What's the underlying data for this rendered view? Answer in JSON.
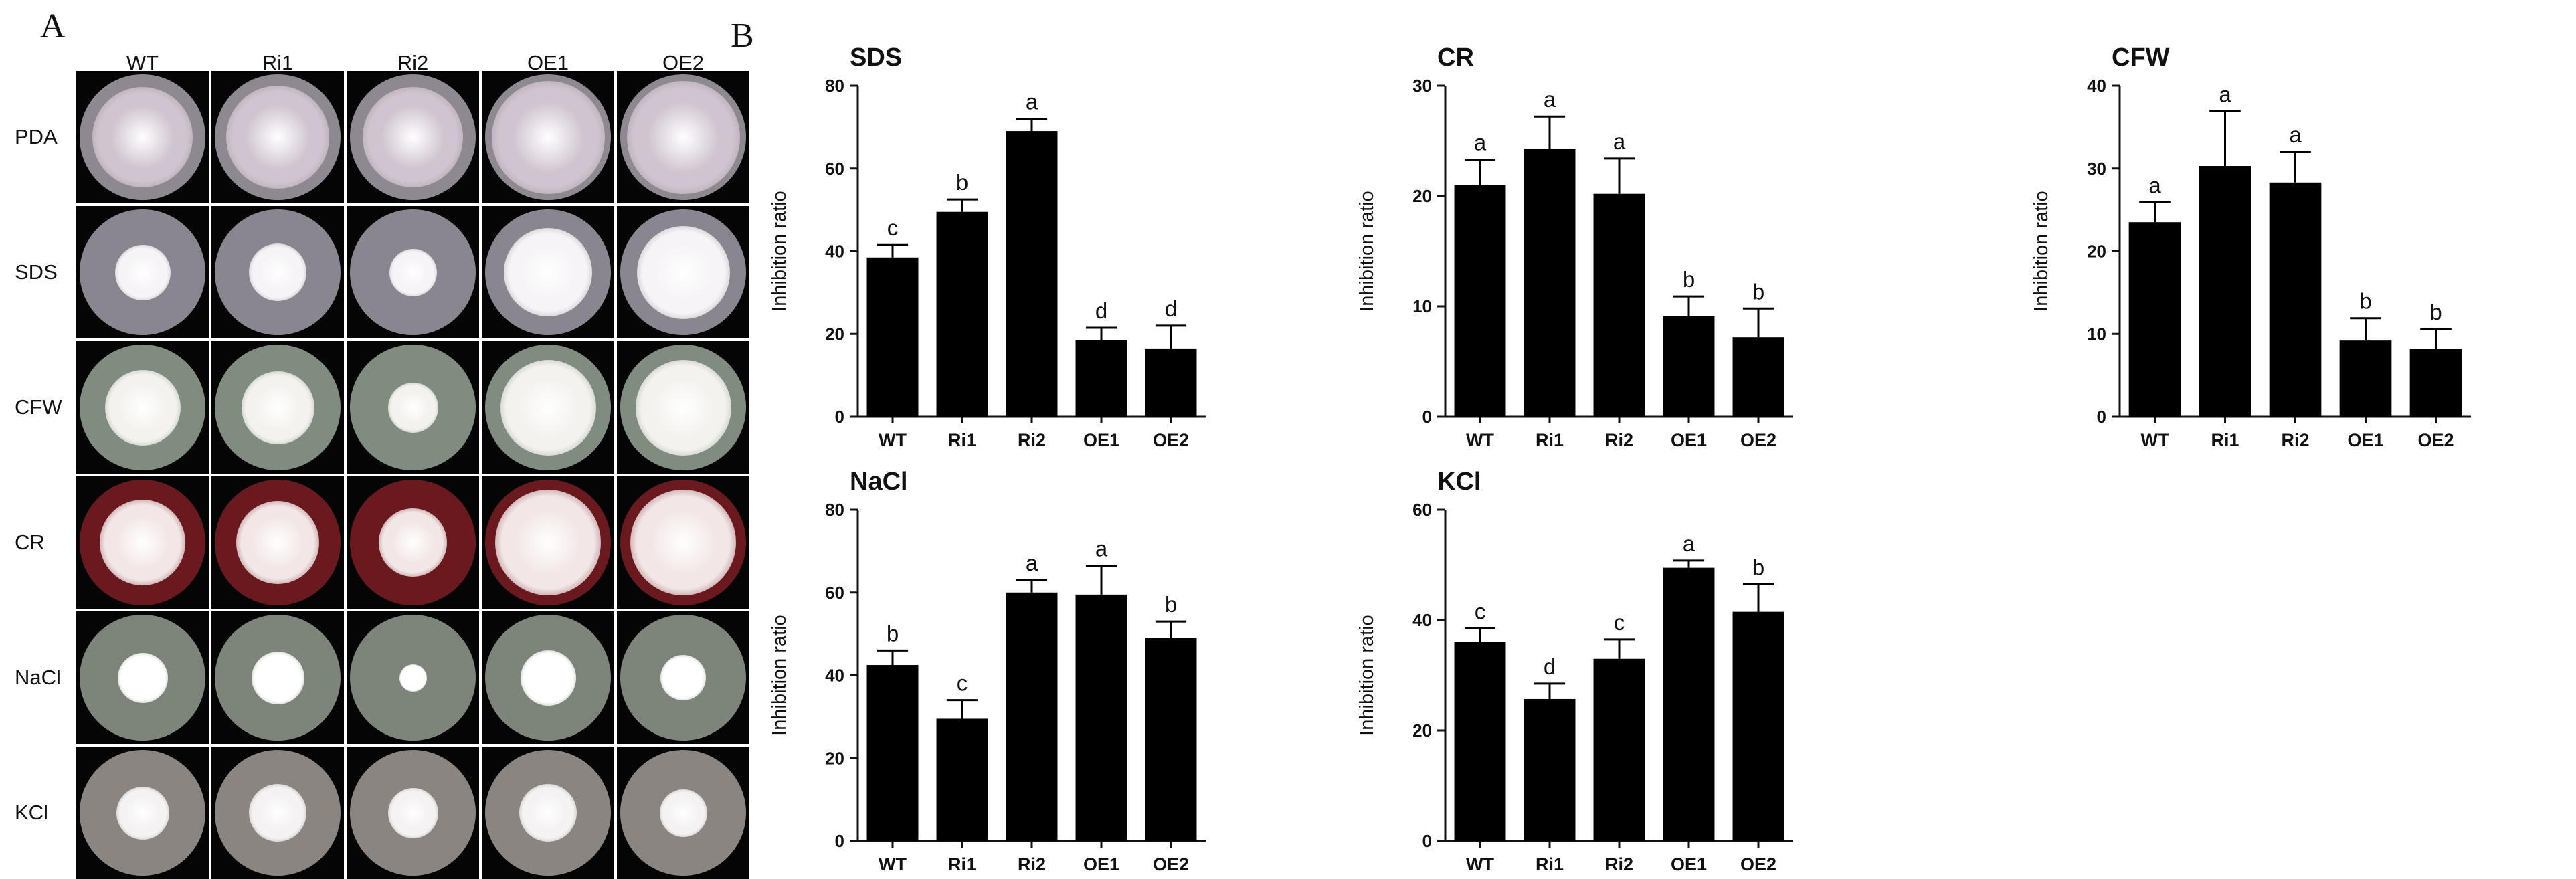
{
  "panel_labels": {
    "a": "A",
    "b": "B"
  },
  "plates": {
    "columns": [
      "WT",
      "Ri1",
      "Ri2",
      "OE1",
      "OE2"
    ],
    "rows": [
      {
        "label": "PDA",
        "medium": "#8e8890",
        "mycelium": "#cfc4cf",
        "sizes": [
          0.8,
          0.82,
          0.8,
          0.9,
          0.9
        ]
      },
      {
        "label": "SDS",
        "medium": "#8a8690",
        "mycelium": "#f6f4f6",
        "sizes": [
          0.44,
          0.46,
          0.38,
          0.7,
          0.74
        ]
      },
      {
        "label": "CFW",
        "medium": "#7f8c7f",
        "mycelium": "#f3f2ef",
        "sizes": [
          0.6,
          0.58,
          0.4,
          0.76,
          0.76
        ]
      },
      {
        "label": "CR",
        "medium": "#6a1a1f",
        "mycelium": "#f2e6e6",
        "sizes": [
          0.68,
          0.66,
          0.54,
          0.84,
          0.84
        ]
      },
      {
        "label": "NaCl",
        "medium": "#7d8479",
        "mycelium": "#ffffff",
        "sizes": [
          0.4,
          0.42,
          0.22,
          0.44,
          0.36
        ]
      },
      {
        "label": "KCl",
        "medium": "#8a8580",
        "mycelium": "#f4f2f2",
        "sizes": [
          0.42,
          0.46,
          0.4,
          0.46,
          0.38
        ]
      }
    ]
  },
  "chart_data": [
    {
      "type": "bar",
      "title": "SDS",
      "ylabel": "Inhibition ratio",
      "ylim": [
        0,
        80
      ],
      "yticks": [
        0,
        20,
        40,
        60,
        80
      ],
      "categories": [
        "WT",
        "Ri1",
        "Ri2",
        "OE1",
        "OE2"
      ],
      "values": [
        38.5,
        49.5,
        69.0,
        18.5,
        16.5
      ],
      "errors": [
        3.0,
        3.0,
        3.0,
        3.0,
        5.5
      ],
      "letters": [
        "c",
        "b",
        "a",
        "d",
        "d"
      ]
    },
    {
      "type": "bar",
      "title": "CR",
      "ylabel": "Inhibition ratio",
      "ylim": [
        0,
        30
      ],
      "yticks": [
        0,
        10,
        20,
        30
      ],
      "categories": [
        "WT",
        "Ri1",
        "Ri2",
        "OE1",
        "OE2"
      ],
      "values": [
        21.0,
        24.3,
        20.2,
        9.1,
        7.2
      ],
      "errors": [
        2.3,
        2.9,
        3.2,
        1.8,
        2.6
      ],
      "letters": [
        "a",
        "a",
        "a",
        "b",
        "b"
      ]
    },
    {
      "type": "bar",
      "title": "CFW",
      "ylabel": "Inhibition ratio",
      "ylim": [
        0,
        40
      ],
      "yticks": [
        0,
        10,
        20,
        30,
        40
      ],
      "categories": [
        "WT",
        "Ri1",
        "Ri2",
        "OE1",
        "OE2"
      ],
      "values": [
        23.5,
        30.3,
        28.3,
        9.2,
        8.2
      ],
      "errors": [
        2.4,
        6.6,
        3.7,
        2.7,
        2.4
      ],
      "letters": [
        "a",
        "a",
        "a",
        "b",
        "b"
      ]
    },
    {
      "type": "bar",
      "title": "NaCl",
      "ylabel": "Inhibition ratio",
      "ylim": [
        0,
        80
      ],
      "yticks": [
        0,
        20,
        40,
        60,
        80
      ],
      "categories": [
        "WT",
        "Ri1",
        "Ri2",
        "OE1",
        "OE2"
      ],
      "values": [
        42.5,
        29.5,
        60.0,
        59.5,
        49.0
      ],
      "errors": [
        3.5,
        4.5,
        3.0,
        7.0,
        4.0
      ],
      "letters": [
        "b",
        "c",
        "a",
        "a",
        "b"
      ]
    },
    {
      "type": "bar",
      "title": "KCl",
      "ylabel": "Inhibition ratio",
      "ylim": [
        0,
        60
      ],
      "yticks": [
        0,
        20,
        40,
        60
      ],
      "categories": [
        "WT",
        "Ri1",
        "Ri2",
        "OE1",
        "OE2"
      ],
      "values": [
        36.0,
        25.7,
        33.0,
        49.5,
        41.5
      ],
      "errors": [
        2.5,
        2.8,
        3.5,
        1.3,
        5.0
      ],
      "letters": [
        "c",
        "d",
        "c",
        "a",
        "b"
      ]
    }
  ]
}
